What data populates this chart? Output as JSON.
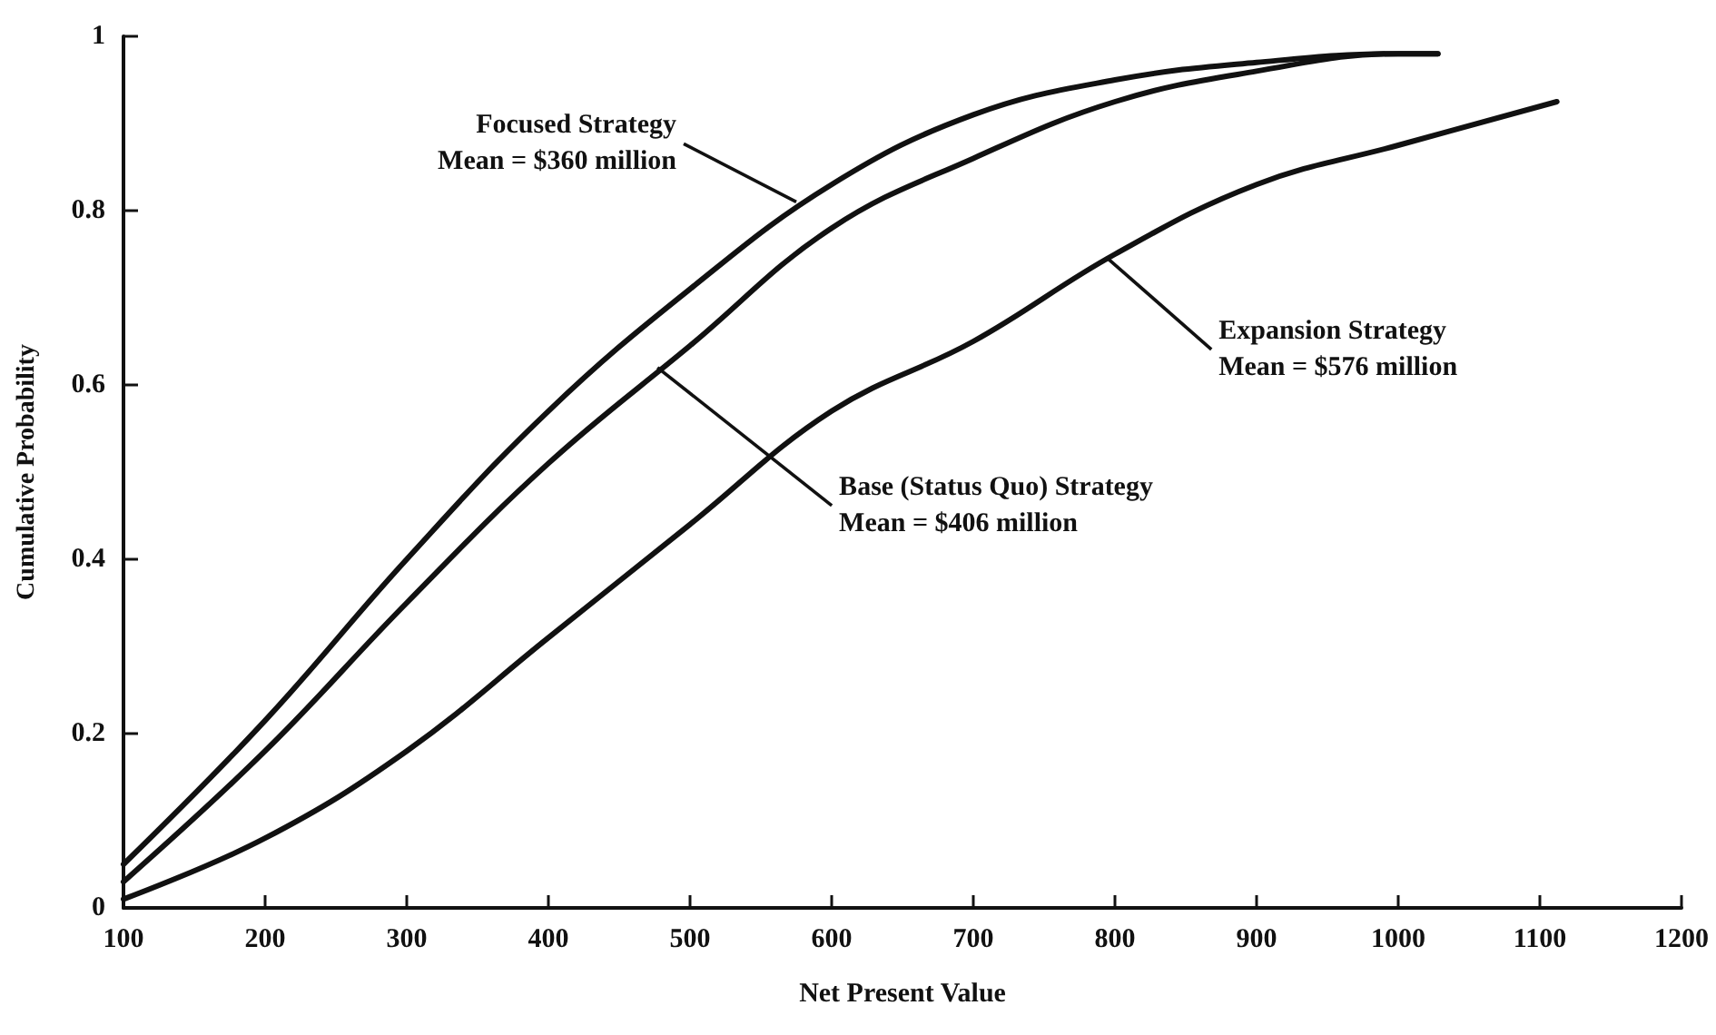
{
  "chart_data": {
    "type": "line",
    "xlabel": "Net Present Value",
    "ylabel": "Cumulative Probability",
    "xlim": [
      100,
      1200
    ],
    "xticks": [
      100,
      200,
      300,
      400,
      500,
      600,
      700,
      800,
      900,
      1000,
      1100,
      1200
    ],
    "ylim": [
      0,
      1
    ],
    "yticks": [
      0,
      0.2,
      0.4,
      0.6,
      0.8,
      1
    ],
    "grid": false,
    "marker": "none",
    "line_style": "solid",
    "series": [
      {
        "color": "#111111",
        "x": [
          100,
          200,
          300,
          400,
          500,
          600,
          700,
          800,
          900,
          1000,
          1028
        ],
        "values": [
          0.05,
          0.215,
          0.4,
          0.57,
          0.71,
          0.83,
          0.91,
          0.95,
          0.97,
          0.98,
          0.98
        ]
      },
      {
        "color": "#111111",
        "x": [
          100,
          200,
          300,
          400,
          500,
          600,
          700,
          800,
          900,
          1000,
          1028
        ],
        "values": [
          0.03,
          0.18,
          0.35,
          0.51,
          0.645,
          0.78,
          0.86,
          0.925,
          0.96,
          0.98,
          0.98
        ]
      },
      {
        "color": "#111111",
        "x": [
          100,
          200,
          300,
          400,
          500,
          600,
          700,
          800,
          900,
          1000,
          1112
        ],
        "values": [
          0.01,
          0.08,
          0.18,
          0.31,
          0.44,
          0.57,
          0.65,
          0.75,
          0.83,
          0.875,
          0.925
        ]
      }
    ],
    "annotations": [
      {
        "text": "Focused Strategy\nMean = $360 million",
        "x": 575,
        "y": 0.81
      },
      {
        "text": "Base (Status Quo) Strategy\nMean = $406 million",
        "x": 477,
        "y": 0.62
      },
      {
        "text": "Expansion Strategy\nMean = $576 million",
        "x": 795,
        "y": 0.745
      }
    ]
  }
}
